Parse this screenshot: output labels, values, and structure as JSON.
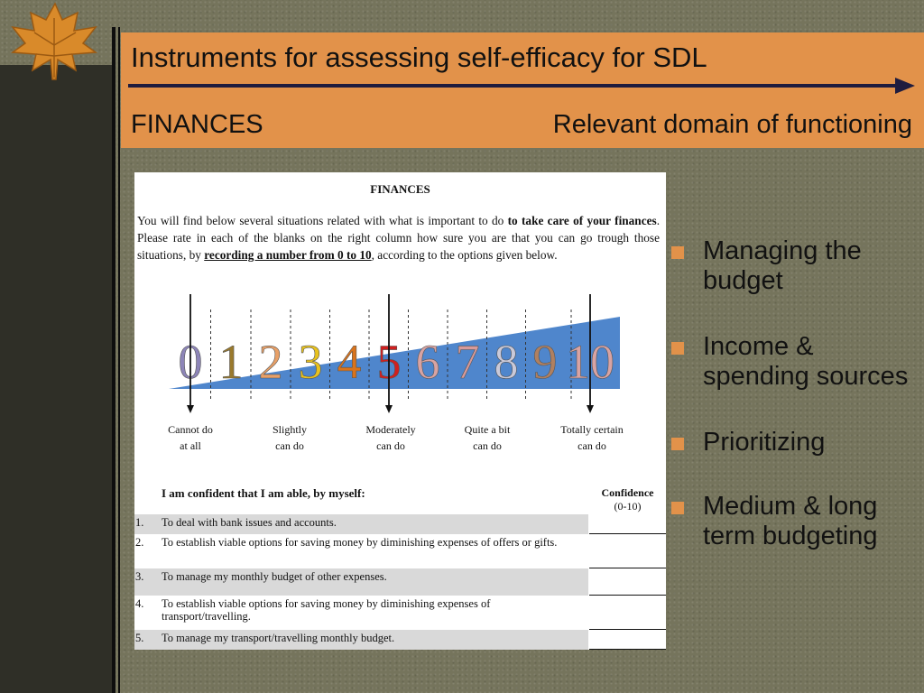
{
  "slide": {
    "title": "Instruments for assessing self-efficacy for SDL",
    "subtitle_left": "FINANCES",
    "subtitle_right": "Relevant domain of functioning",
    "accent_color": "#e2924a"
  },
  "document": {
    "heading": "FINANCES",
    "intro_part1": "You will find below several situations related with what is important to do ",
    "intro_bold1": "to take care of your finances",
    "intro_part2": ". Please rate in each of the blanks on the right column how sure you are that you can go trough those situations, by ",
    "intro_bold2": "recording a number from 0 to 10",
    "intro_part3": ", according to the options given below.",
    "scale_numbers": [
      "0",
      "1",
      "2",
      "3",
      "4",
      "5",
      "6",
      "7",
      "8",
      "9",
      "10"
    ],
    "scale_colors": [
      "#8d85b8",
      "#9a7a2c",
      "#e8a067",
      "#e8c21e",
      "#d9731c",
      "#d01f1f",
      "#d8a3a3",
      "#d79a9a",
      "#c9c9d9",
      "#b08060",
      "#d8a3a3"
    ],
    "scale_labels": [
      {
        "line1": "Cannot do",
        "line2": "at all"
      },
      {
        "line1": "Slightly",
        "line2": "can do"
      },
      {
        "line1": "Moderately",
        "line2": "can do"
      },
      {
        "line1": "Quite a bit",
        "line2": "can do"
      },
      {
        "line1": "Totally certain",
        "line2": "can do"
      }
    ],
    "statement_header": "I am confident that I am able, by myself:",
    "confidence_label": "Confidence",
    "confidence_range": "(0-10)",
    "items": [
      {
        "num": "1.",
        "text": "To deal with bank issues and accounts."
      },
      {
        "num": "2.",
        "text": "To establish viable options for saving money by diminishing expenses of offers or gifts."
      },
      {
        "num": "3.",
        "text": "To manage my monthly budget of other expenses."
      },
      {
        "num": "4.",
        "text": "To establish viable options for saving money by diminishing expenses of transport/travelling."
      },
      {
        "num": "5.",
        "text": "To manage my transport/travelling monthly budget."
      }
    ]
  },
  "bullets": [
    "Managing the budget",
    "Income & spending sources",
    "Prioritizing",
    "Medium & long term budgeting"
  ]
}
